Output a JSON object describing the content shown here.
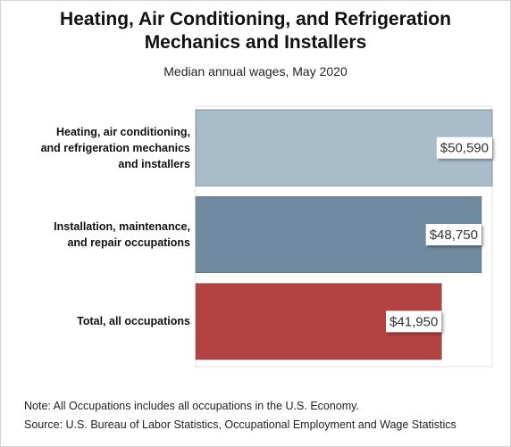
{
  "chart_data": {
    "type": "hbar",
    "title": "Heating, Air Conditioning, and Refrigeration\nMechanics and Installers",
    "subtitle": "Median annual wages, May 2020",
    "categories": [
      "Heating, air conditioning,\nand refrigeration mechanics\nand installers",
      "Installation, maintenance,\nand repair occupations",
      "Total, all occupations"
    ],
    "values": [
      50590,
      48750,
      41950
    ],
    "value_labels": [
      "$50,590",
      "$48,750",
      "$41,950"
    ],
    "colors": [
      "#a9bcc9",
      "#6f8aa0",
      "#b34242"
    ],
    "xlim": [
      0,
      50590
    ],
    "note": "Note: All Occupations includes all occupations in the U.S. Economy.",
    "source": "Source: U.S. Bureau of Labor Statistics, Occupational Employment and Wage Statistics"
  }
}
